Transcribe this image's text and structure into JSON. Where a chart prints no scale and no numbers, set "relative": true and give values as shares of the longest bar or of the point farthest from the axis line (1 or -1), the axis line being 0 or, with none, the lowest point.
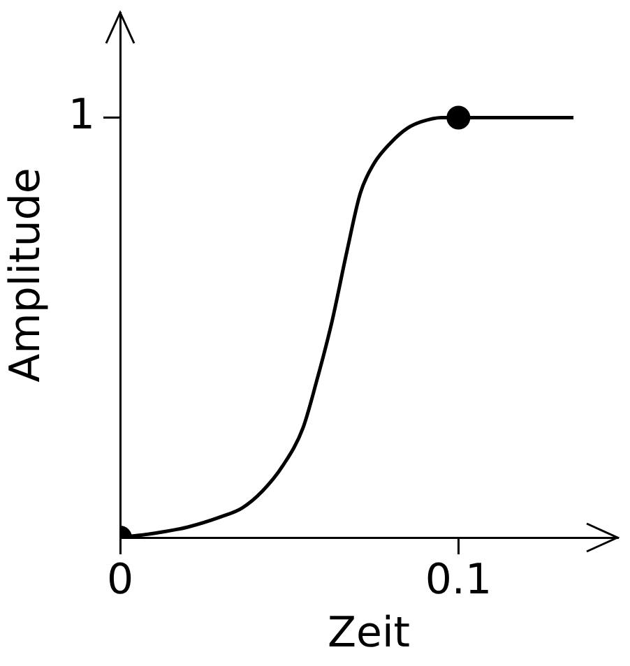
{
  "chart_data": {
    "type": "line",
    "xlabel": "Zeit",
    "ylabel": "Amplitude",
    "relative": true,
    "xlim": [
      0,
      0.147
    ],
    "xticks": [
      0,
      0.1
    ],
    "annotations": [
      "1"
    ],
    "grid": false,
    "legend": false,
    "series": [
      {
        "color": "#000000",
        "marker": "none",
        "x": [
          0,
          0.01,
          0.02,
          0.03,
          0.036,
          0.042,
          0.048,
          0.054,
          0.058,
          0.0625,
          0.067,
          0.071,
          0.075,
          0.08,
          0.085,
          0.089,
          0.095,
          0.1,
          0.134
        ],
        "values": [
          0,
          0.01,
          0.025,
          0.05,
          0.07,
          0.11,
          0.17,
          0.26,
          0.37,
          0.51,
          0.68,
          0.82,
          0.89,
          0.94,
          0.975,
          0.99,
          1.0,
          1.0,
          1.0
        ]
      },
      {
        "type": "scatter",
        "color": "#000000",
        "marker": "circle",
        "x": [
          0,
          0.1
        ],
        "values": [
          0,
          1
        ]
      }
    ]
  }
}
